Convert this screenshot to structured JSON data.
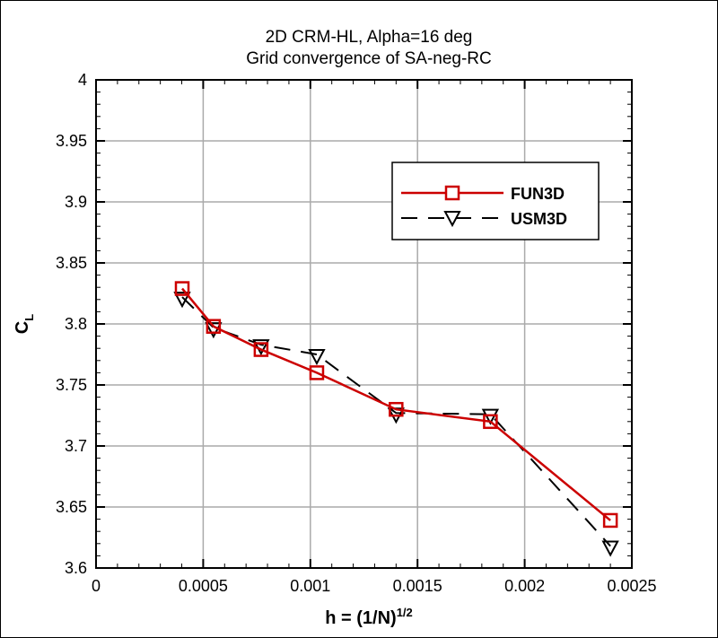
{
  "chart_data": {
    "type": "line",
    "title": [
      "2D CRM-HL, Alpha=16 deg",
      "Grid convergence of SA-neg-RC"
    ],
    "xlabel": {
      "base": "h = (1/N)",
      "sup": "1/2"
    },
    "ylabel": {
      "base": "C",
      "sub": "L"
    },
    "xlim": [
      0,
      0.0025
    ],
    "ylim": [
      3.6,
      4
    ],
    "xticks": [
      "0",
      "0.0005",
      "0.001",
      "0.0015",
      "0.002",
      "0.0025"
    ],
    "yticks": [
      "3.6",
      "3.65",
      "3.7",
      "3.75",
      "3.8",
      "3.85",
      "3.9",
      "3.95",
      "4"
    ],
    "grid": true,
    "legend_position": "top-right",
    "series": [
      {
        "name": "FUN3D",
        "color": "#cc0000",
        "marker": "square",
        "line": "solid",
        "x": [
          0.000402,
          0.000548,
          0.00077,
          0.00103,
          0.0014,
          0.00184,
          0.0024
        ],
        "y": [
          3.829,
          3.798,
          3.779,
          3.76,
          3.73,
          3.72,
          3.639
        ]
      },
      {
        "name": "USM3D",
        "color": "#000000",
        "marker": "triangle-down",
        "line": "dashed",
        "x": [
          0.000402,
          0.000548,
          0.00077,
          0.00103,
          0.0014,
          0.00184,
          0.0024
        ],
        "y": [
          3.822,
          3.797,
          3.783,
          3.775,
          3.727,
          3.726,
          3.618
        ]
      }
    ]
  }
}
